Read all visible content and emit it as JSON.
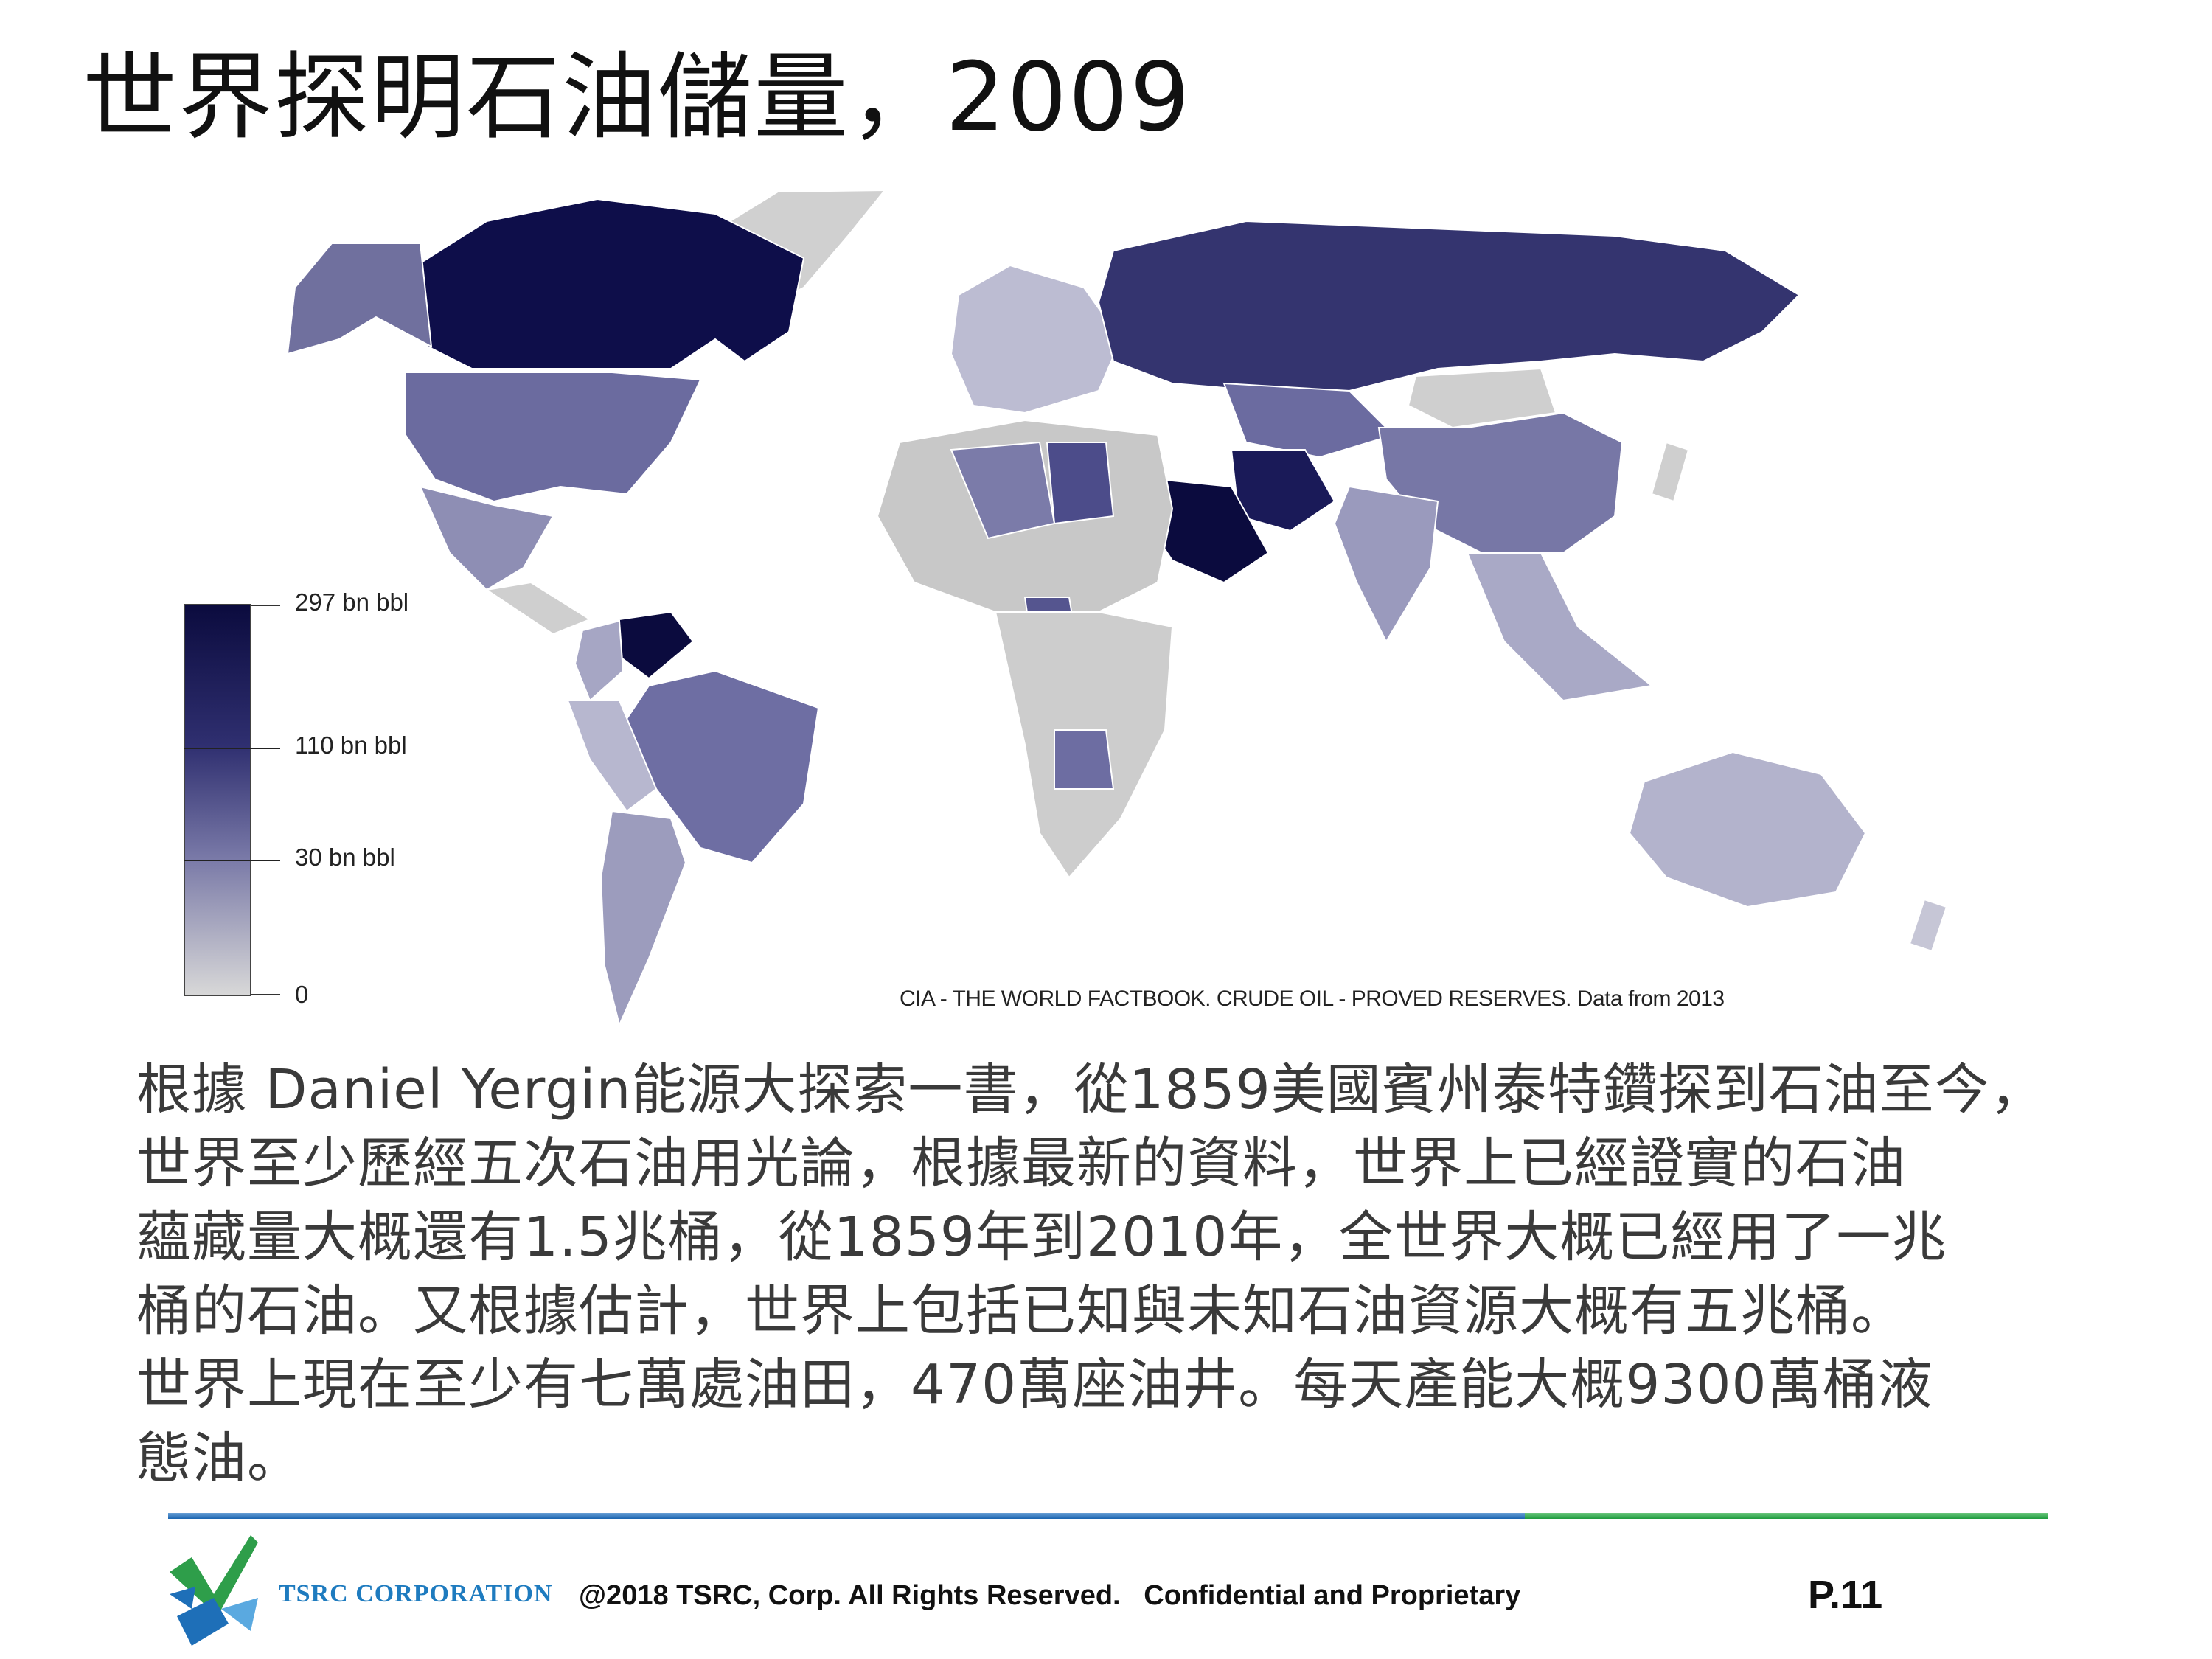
{
  "slide": {
    "title": "世界探明石油儲量，2009"
  },
  "map": {
    "legend": {
      "labels": [
        "297 bn bbl",
        "110 bn bbl",
        "30 bn bbl",
        "0"
      ],
      "color_scale": [
        "#0b0b3e",
        "#2f2f70",
        "#7777a6",
        "#d6d6d6"
      ]
    },
    "source": "CIA - THE WORLD FACTBOOK. CRUDE OIL - PROVED RESERVES. Data from 2013",
    "ocean_color": "#ffffff",
    "land_default_color": "#d0d0d0"
  },
  "body": {
    "lines": [
      "根據 Daniel Yergin能源大探索一書，從1859美國賓州泰特鑽探到石油至今，",
      "世界至少歷經五次石油用光論，根據最新的資料，世界上已經證實的石油",
      "蘊藏量大概還有1.5兆桶，從1859年到2010年，全世界大概已經用了一兆",
      "桶的石油。又根據估計，世界上包括已知與未知石油資源大概有五兆桶。",
      "世界上現在至少有七萬處油田，470萬座油井。每天產能大概9300萬桶液",
      "態油。"
    ]
  },
  "footer": {
    "company": "TSRC CORPORATION",
    "copyright": "@2018 TSRC, Corp. All Rights Reserved.   Confidential and Proprietary",
    "page": "P.11",
    "rule_colors": [
      "#1a64b0",
      "#1e9c3e"
    ]
  }
}
